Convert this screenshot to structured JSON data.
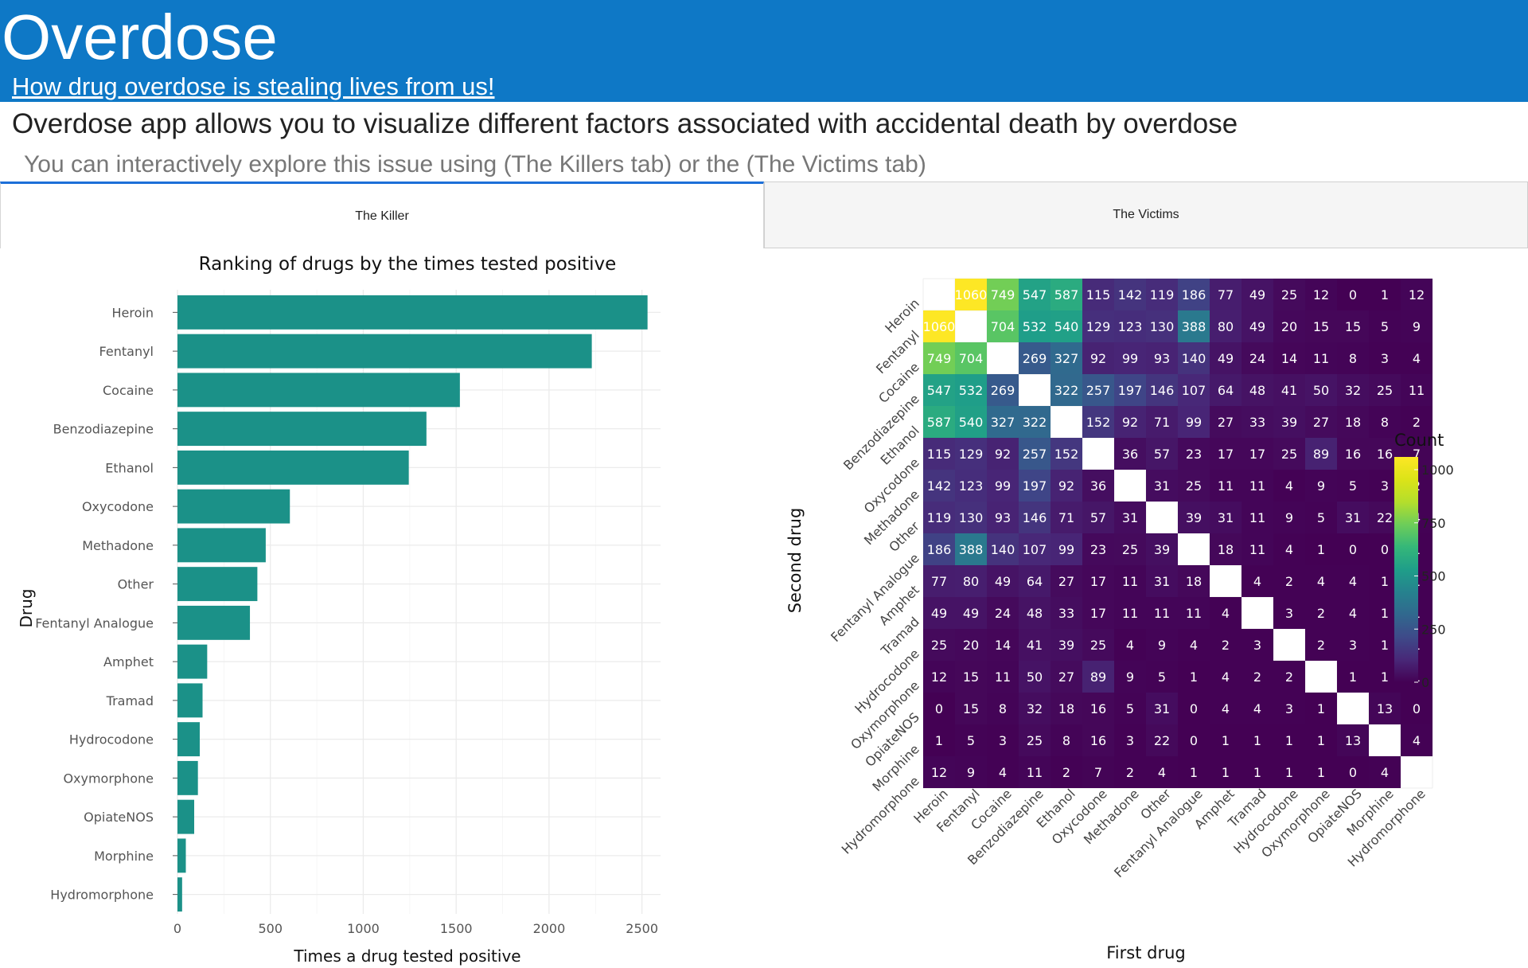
{
  "header": {
    "title": "Overdose",
    "subtitle_link": "How drug overdose is stealing lives from us!"
  },
  "intro": {
    "heading": "Overdose app allows you to visualize different factors associated with accidental death by overdose",
    "subheading": "You can interactively explore this issue using (The Killers tab) or the (The Victims tab)"
  },
  "tabs": [
    {
      "label": "The Killer",
      "active": true
    },
    {
      "label": "The Victims",
      "active": false
    }
  ],
  "colors": {
    "header_bg": "#0e78c6",
    "bar_fill": "#1b9188",
    "active_tab_border": "#1c6fd8"
  },
  "chart_data": [
    {
      "type": "bar",
      "orientation": "horizontal",
      "title": "Ranking of drugs by the times tested positive",
      "xlabel": "Times a drug tested positive",
      "ylabel": "Drug",
      "categories": [
        "Heroin",
        "Fentanyl",
        "Cocaine",
        "Benzodiazepine",
        "Ethanol",
        "Oxycodone",
        "Methadone",
        "Other",
        "Fentanyl Analogue",
        "Amphet",
        "Tramad",
        "Hydrocodone",
        "Oxymorphone",
        "OpiateNOS",
        "Morphine",
        "Hydromorphone"
      ],
      "values": [
        2530,
        2230,
        1520,
        1340,
        1245,
        605,
        475,
        430,
        390,
        160,
        135,
        120,
        110,
        90,
        45,
        25
      ],
      "xlim": [
        0,
        2600
      ],
      "xticks": [
        0,
        500,
        1000,
        1500,
        2000,
        2500
      ],
      "grid": true
    },
    {
      "type": "heatmap",
      "xlabel": "First drug",
      "ylabel": "Second drug",
      "legend_title": "Count",
      "legend_ticks": [
        0,
        250,
        500,
        750,
        1000
      ],
      "value_range": [
        0,
        1060
      ],
      "colorscale": "viridis",
      "legend_position": "right",
      "categories": [
        "Heroin",
        "Fentanyl",
        "Cocaine",
        "Benzodiazepine",
        "Ethanol",
        "Oxycodone",
        "Methadone",
        "Other",
        "Fentanyl Analogue",
        "Amphet",
        "Tramad",
        "Hydrocodone",
        "Oxymorphone",
        "OpiateNOS",
        "Morphine",
        "Hydromorphone"
      ],
      "matrix": [
        [
          null,
          1060,
          749,
          547,
          587,
          115,
          142,
          119,
          186,
          77,
          49,
          25,
          12,
          0,
          1,
          12
        ],
        [
          1060,
          null,
          704,
          532,
          540,
          129,
          123,
          130,
          388,
          80,
          49,
          20,
          15,
          15,
          5,
          9
        ],
        [
          749,
          704,
          null,
          269,
          327,
          92,
          99,
          93,
          140,
          49,
          24,
          14,
          11,
          8,
          3,
          4
        ],
        [
          547,
          532,
          269,
          null,
          322,
          257,
          197,
          146,
          107,
          64,
          48,
          41,
          50,
          32,
          25,
          11
        ],
        [
          587,
          540,
          327,
          322,
          null,
          152,
          92,
          71,
          99,
          27,
          33,
          39,
          27,
          18,
          8,
          2
        ],
        [
          115,
          129,
          92,
          257,
          152,
          null,
          36,
          57,
          23,
          17,
          17,
          25,
          89,
          16,
          16,
          7
        ],
        [
          142,
          123,
          99,
          197,
          92,
          36,
          null,
          31,
          25,
          11,
          11,
          4,
          9,
          5,
          3,
          2
        ],
        [
          119,
          130,
          93,
          146,
          71,
          57,
          31,
          null,
          39,
          31,
          11,
          9,
          5,
          31,
          22,
          4
        ],
        [
          186,
          388,
          140,
          107,
          99,
          23,
          25,
          39,
          null,
          18,
          11,
          4,
          1,
          0,
          0,
          1
        ],
        [
          77,
          80,
          49,
          64,
          27,
          17,
          11,
          31,
          18,
          null,
          4,
          2,
          4,
          4,
          1,
          1
        ],
        [
          49,
          49,
          24,
          48,
          33,
          17,
          11,
          11,
          11,
          4,
          null,
          3,
          2,
          4,
          1,
          1
        ],
        [
          25,
          20,
          14,
          41,
          39,
          25,
          4,
          9,
          4,
          2,
          3,
          null,
          2,
          3,
          1,
          1
        ],
        [
          12,
          15,
          11,
          50,
          27,
          89,
          9,
          5,
          1,
          4,
          2,
          2,
          null,
          1,
          1,
          1
        ],
        [
          0,
          15,
          8,
          32,
          18,
          16,
          5,
          31,
          0,
          4,
          4,
          3,
          1,
          null,
          13,
          0
        ],
        [
          1,
          5,
          3,
          25,
          8,
          16,
          3,
          22,
          0,
          1,
          1,
          1,
          1,
          13,
          null,
          4
        ],
        [
          12,
          9,
          4,
          11,
          2,
          7,
          2,
          4,
          1,
          1,
          1,
          1,
          1,
          0,
          4,
          null
        ]
      ]
    }
  ]
}
